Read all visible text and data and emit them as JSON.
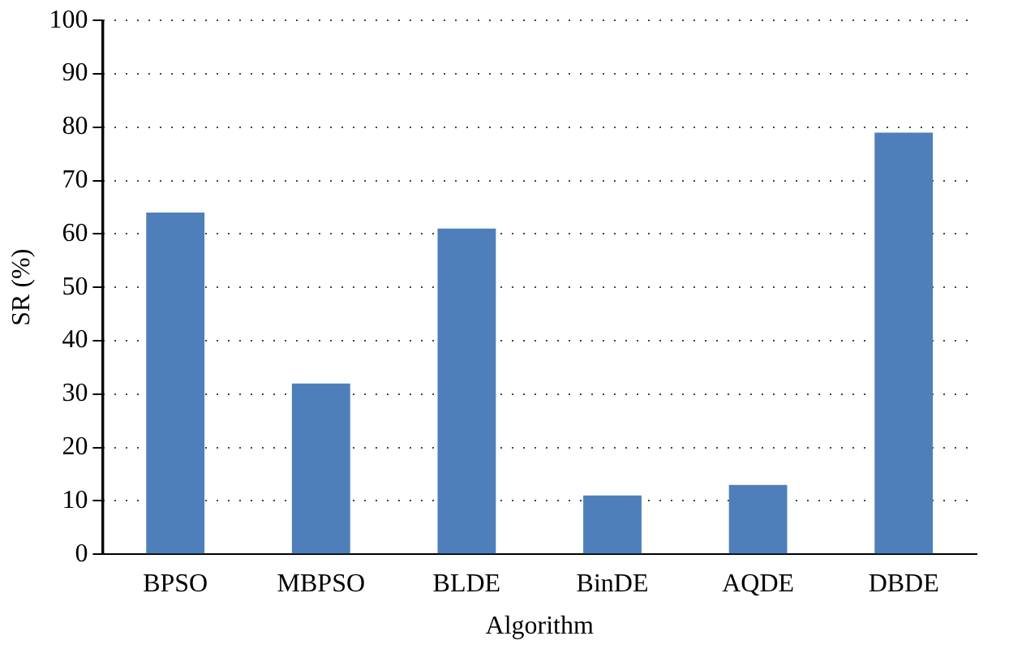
{
  "chart_data": {
    "type": "bar",
    "xlabel": "Algorithm",
    "ylabel": "SR (%)",
    "categories": [
      "BPSO",
      "MBPSO",
      "BLDE",
      "BinDE",
      "AQDE",
      "DBDE"
    ],
    "values": [
      64,
      32,
      61,
      11,
      13,
      79
    ],
    "color": "#4f7fba",
    "ylim": [
      0,
      100
    ],
    "yticks": [
      0,
      10,
      20,
      30,
      40,
      50,
      60,
      70,
      80,
      90,
      100
    ],
    "grid": "y"
  }
}
